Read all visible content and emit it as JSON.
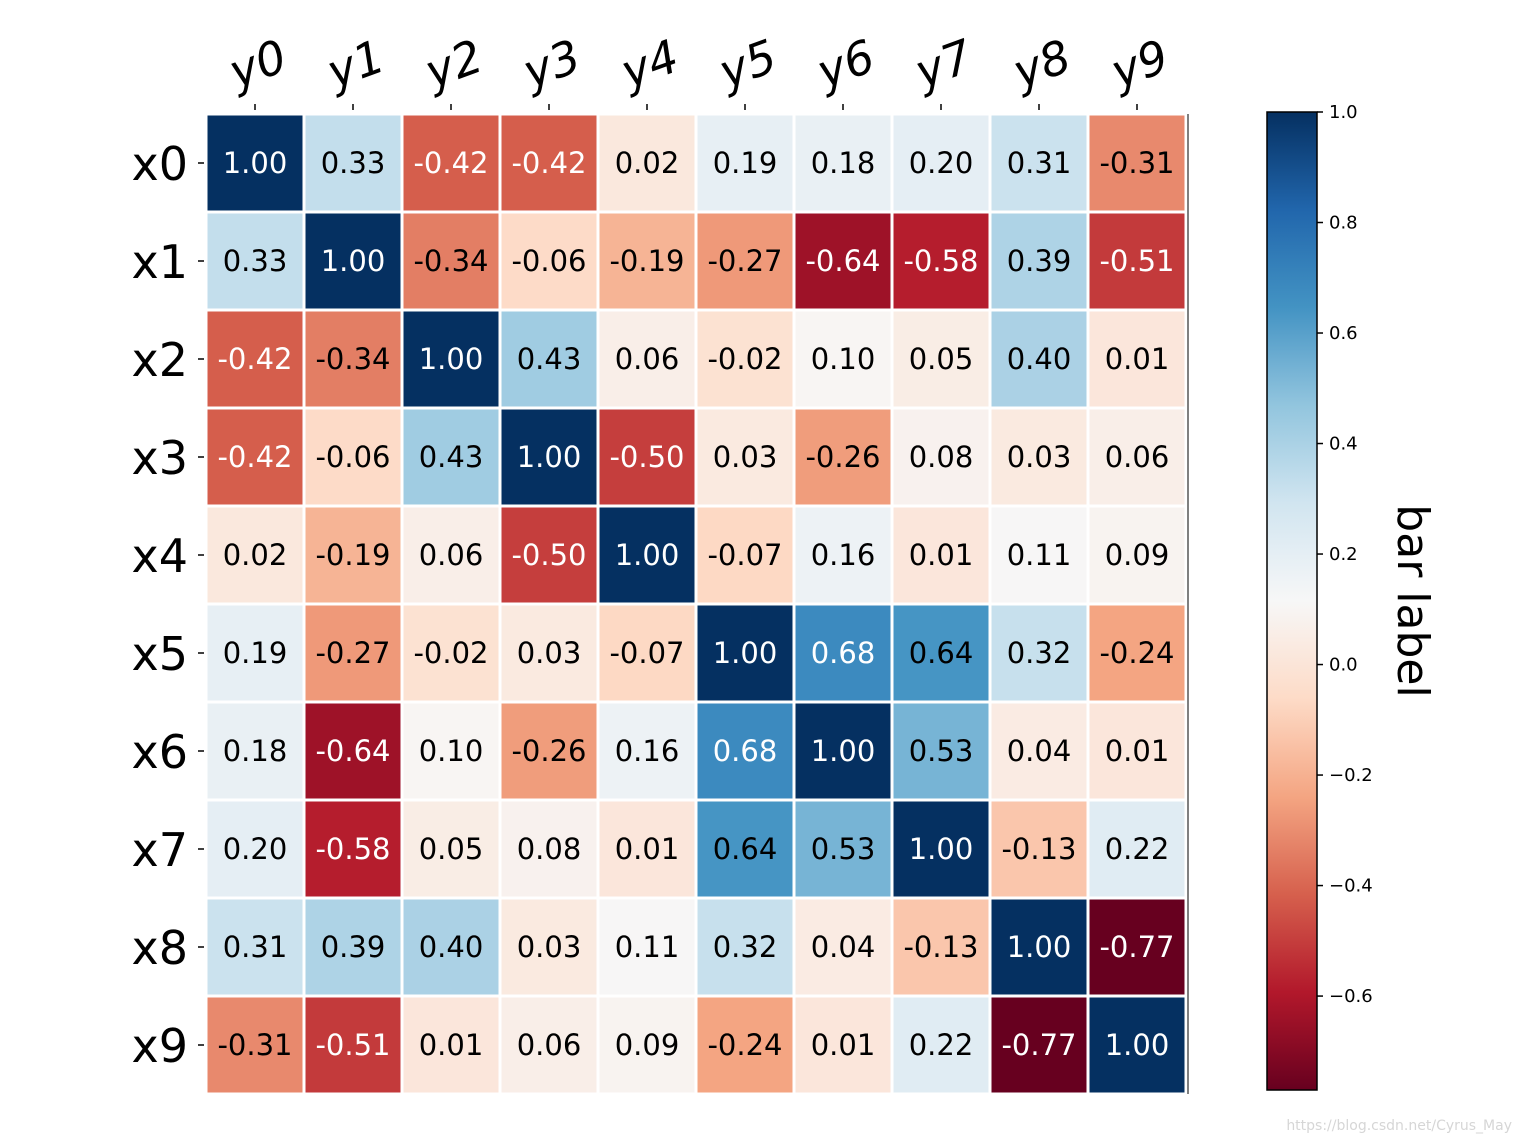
{
  "chart_data": {
    "type": "heatmap",
    "title": "",
    "row_labels": [
      "x0",
      "x1",
      "x2",
      "x3",
      "x4",
      "x5",
      "x6",
      "x7",
      "x8",
      "x9"
    ],
    "col_labels": [
      "y0",
      "y1",
      "y2",
      "y3",
      "y4",
      "y5",
      "y6",
      "y7",
      "y8",
      "y9"
    ],
    "values": [
      [
        1.0,
        0.33,
        -0.42,
        -0.42,
        0.02,
        0.19,
        0.18,
        0.2,
        0.31,
        -0.31
      ],
      [
        0.33,
        1.0,
        -0.34,
        -0.06,
        -0.19,
        -0.27,
        -0.64,
        -0.58,
        0.39,
        -0.51
      ],
      [
        -0.42,
        -0.34,
        1.0,
        0.43,
        0.06,
        -0.02,
        0.1,
        0.05,
        0.4,
        0.01
      ],
      [
        -0.42,
        -0.06,
        0.43,
        1.0,
        -0.5,
        0.03,
        -0.26,
        0.08,
        0.03,
        0.06
      ],
      [
        0.02,
        -0.19,
        0.06,
        -0.5,
        1.0,
        -0.07,
        0.16,
        0.01,
        0.11,
        0.09
      ],
      [
        0.19,
        -0.27,
        -0.02,
        0.03,
        -0.07,
        1.0,
        0.68,
        0.64,
        0.32,
        -0.24
      ],
      [
        0.18,
        -0.64,
        0.1,
        -0.26,
        0.16,
        0.68,
        1.0,
        0.53,
        0.04,
        0.01
      ],
      [
        0.2,
        -0.58,
        0.05,
        0.08,
        0.01,
        0.64,
        0.53,
        1.0,
        -0.13,
        0.22
      ],
      [
        0.31,
        0.39,
        0.4,
        0.03,
        0.11,
        0.32,
        0.04,
        -0.13,
        1.0,
        -0.77
      ],
      [
        -0.31,
        -0.51,
        0.01,
        0.06,
        0.09,
        -0.24,
        0.01,
        0.22,
        -0.77,
        1.0
      ]
    ],
    "value_format": "0.00",
    "colormap": "RdBu",
    "vmin": -0.77,
    "vmax": 1.0,
    "grid": false,
    "cell_gap_color": "#ffffff",
    "colorbar": {
      "label": "bar label",
      "ticks": [
        1.0,
        0.8,
        0.6,
        0.4,
        0.2,
        0.0,
        -0.2,
        -0.4,
        -0.6
      ],
      "tick_labels": [
        "1.0",
        "0.8",
        "0.6",
        "0.4",
        "0.2",
        "0.0",
        "−0.2",
        "−0.4",
        "−0.6"
      ],
      "position": "right"
    },
    "x_tick_position": "top",
    "text_color_dark": "#000000",
    "text_color_light": "#ffffff"
  },
  "watermark": "https://blog.csdn.net/Cyrus_May"
}
